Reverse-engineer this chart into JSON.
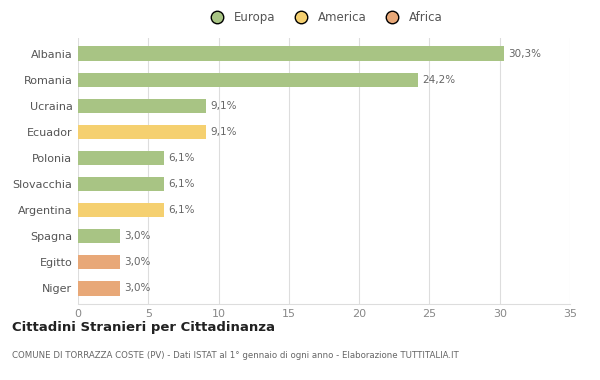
{
  "categories": [
    "Albania",
    "Romania",
    "Ucraina",
    "Ecuador",
    "Polonia",
    "Slovacchia",
    "Argentina",
    "Spagna",
    "Egitto",
    "Niger"
  ],
  "values": [
    30.3,
    24.2,
    9.1,
    9.1,
    6.1,
    6.1,
    6.1,
    3.0,
    3.0,
    3.0
  ],
  "labels": [
    "30,3%",
    "24,2%",
    "9,1%",
    "9,1%",
    "6,1%",
    "6,1%",
    "6,1%",
    "3,0%",
    "3,0%",
    "3,0%"
  ],
  "colors": [
    "#a8c484",
    "#a8c484",
    "#a8c484",
    "#f5d070",
    "#a8c484",
    "#a8c484",
    "#f5d070",
    "#a8c484",
    "#e8a878",
    "#e8a878"
  ],
  "legend": [
    {
      "label": "Europa",
      "color": "#a8c484"
    },
    {
      "label": "America",
      "color": "#f5d070"
    },
    {
      "label": "Africa",
      "color": "#e8a878"
    }
  ],
  "xlim": [
    0,
    35
  ],
  "xticks": [
    0,
    5,
    10,
    15,
    20,
    25,
    30,
    35
  ],
  "title": "Cittadini Stranieri per Cittadinanza",
  "subtitle": "COMUNE DI TORRAZZA COSTE (PV) - Dati ISTAT al 1° gennaio di ogni anno - Elaborazione TUTTITALIA.IT",
  "background_color": "#ffffff",
  "bar_height": 0.55,
  "label_color": "#666666",
  "grid_color": "#dddddd"
}
